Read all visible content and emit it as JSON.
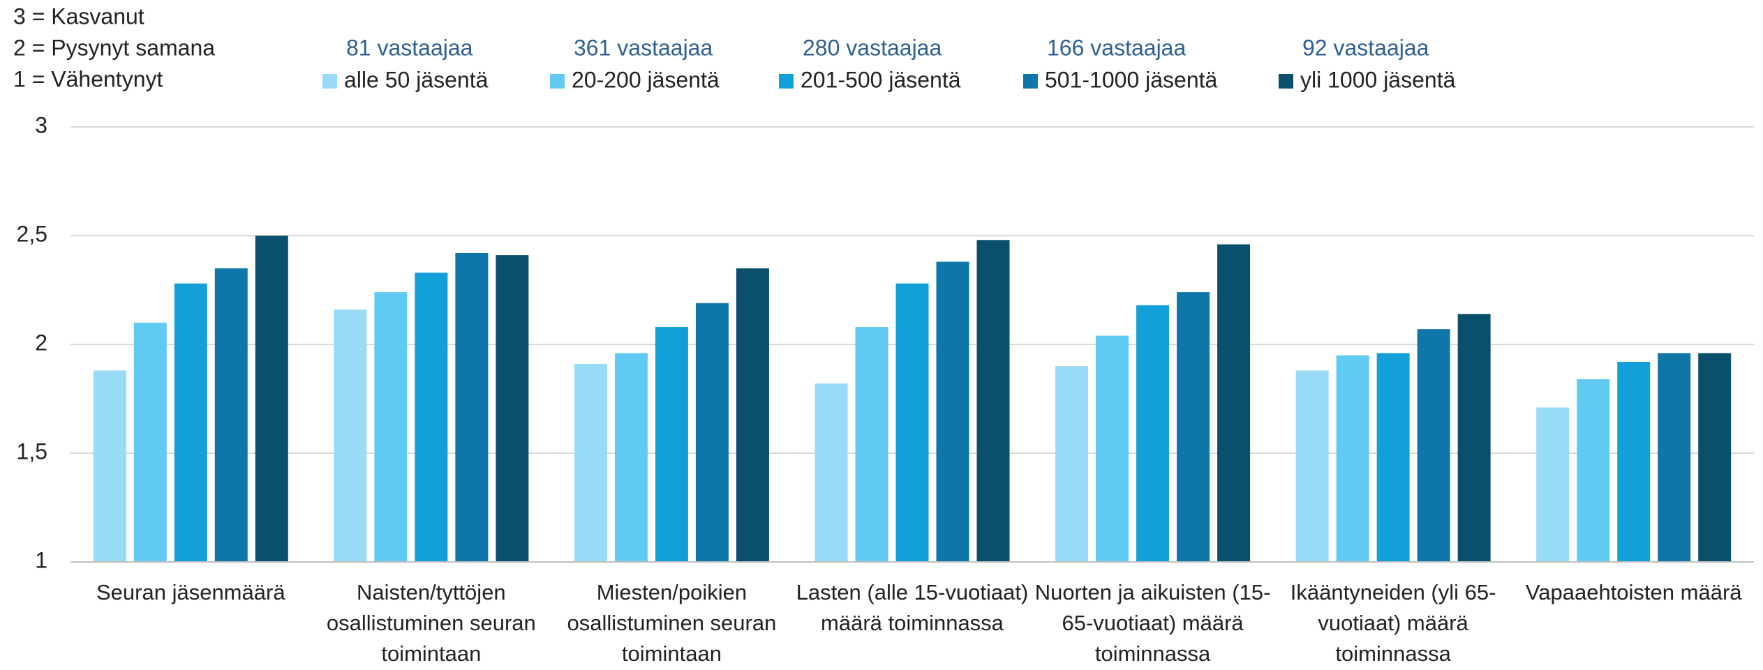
{
  "chart_data": {
    "type": "bar",
    "scale_notes": [
      "3 = Kasvanut",
      "2 = Pysynyt samana",
      "1 = Vähentynyt"
    ],
    "categories": [
      "Seuran jäsenmäärä",
      "Naisten/tyttöjen osallistuminen seuran toimintaan",
      "Miesten/poikien osallistuminen seuran toimintaan",
      "Lasten (alle 15-vuotiaat) määrä toiminnassa",
      "Nuorten ja aikuisten (15-65-vuotiaat) määrä toiminnassa",
      "Ikääntyneiden (yli 65-vuotiaat) määrä toiminnassa",
      "Vapaaehtoisten määrä"
    ],
    "series": [
      {
        "name": "alle 50 jäsentä",
        "respondents": "81 vastaajaa",
        "color": "#97dbf7",
        "values": [
          1.88,
          2.16,
          1.91,
          1.82,
          1.9,
          1.88,
          1.71
        ]
      },
      {
        "name": "20-200 jäsentä",
        "respondents": "361 vastaajaa",
        "color": "#61caf2",
        "values": [
          2.1,
          2.24,
          1.96,
          2.08,
          2.04,
          1.95,
          1.84
        ]
      },
      {
        "name": "201-500 jäsentä",
        "respondents": "280 vastaajaa",
        "color": "#139fd8",
        "values": [
          2.28,
          2.33,
          2.08,
          2.28,
          2.18,
          1.96,
          1.92
        ]
      },
      {
        "name": "501-1000 jäsentä",
        "respondents": "166 vastaajaa",
        "color": "#0e76a8",
        "values": [
          2.35,
          2.42,
          2.19,
          2.38,
          2.24,
          2.07,
          1.96
        ]
      },
      {
        "name": "yli 1000 jäsentä",
        "respondents": "92 vastaajaa",
        "color": "#0a4f6b",
        "values": [
          2.5,
          2.41,
          2.35,
          2.48,
          2.46,
          2.14,
          1.96
        ]
      }
    ],
    "ylim": [
      1,
      3
    ],
    "yticks": [
      1,
      {
        "value": 1.5,
        "label": "1,5"
      },
      2,
      {
        "value": 2.5,
        "label": "2,5"
      },
      3
    ],
    "grid": true
  }
}
